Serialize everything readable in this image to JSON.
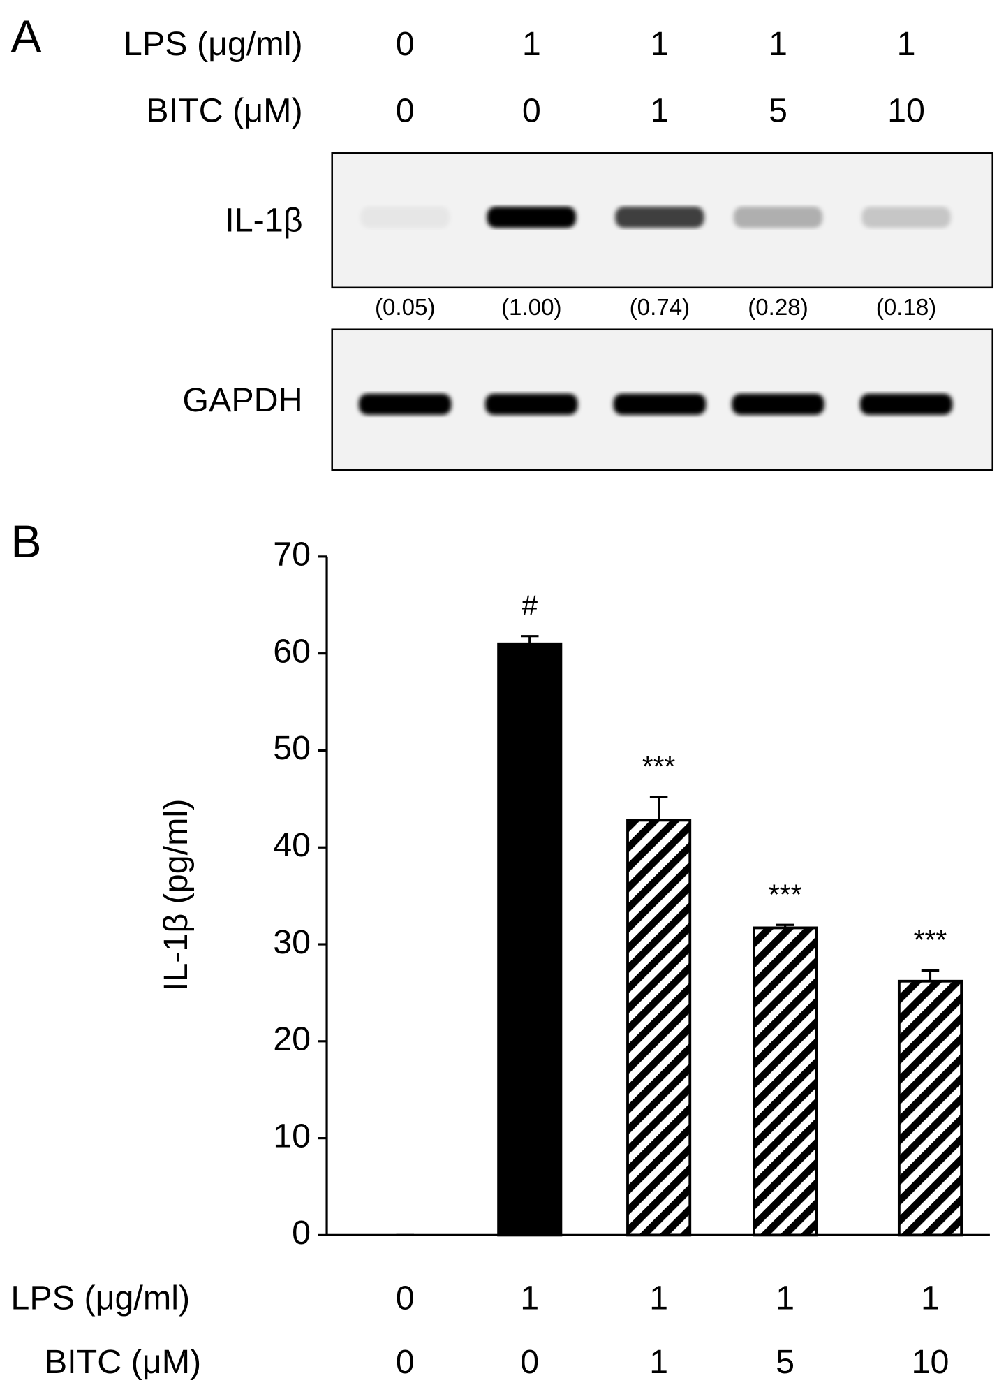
{
  "panel_a": {
    "label": "A",
    "condition_rows": [
      {
        "name": "LPS (μg/ml)",
        "labels": [
          "0",
          "1",
          "1",
          "1",
          "1"
        ]
      },
      {
        "name": "BITC (μM)",
        "labels": [
          "0",
          "0",
          "1",
          "5",
          "10"
        ]
      }
    ],
    "blots": [
      {
        "name": "IL-1β"
      },
      {
        "name": "GAPDH"
      }
    ],
    "ratios": [
      0.05,
      1.0,
      0.74,
      0.28,
      0.18
    ],
    "ratio_labels": [
      "(0.05)",
      "(1.00)",
      "(0.74)",
      "(0.28)",
      "(0.18)"
    ]
  },
  "chart_data": {
    "type": "bar",
    "panel_label": "B",
    "y_label": "IL-1β (pg/ml)",
    "category_rows": [
      {
        "name": "LPS (μg/ml)",
        "labels": [
          "0",
          "1",
          "1",
          "1",
          "1"
        ]
      },
      {
        "name": "BITC (μM)",
        "labels": [
          "0",
          "0",
          "1",
          "5",
          "10"
        ]
      }
    ],
    "values": [
      0,
      61,
      42.8,
      31.7,
      26.2
    ],
    "errors": [
      0,
      0.8,
      2.4,
      0.3,
      1.1
    ],
    "annotations": [
      null,
      "#",
      "***",
      "***",
      "***"
    ],
    "bar_styles": [
      "solid",
      "solid",
      "hatched",
      "hatched",
      "hatched"
    ],
    "color": "#000000",
    "ylim": [
      0,
      70
    ],
    "yticks": [
      0,
      10,
      20,
      30,
      40,
      50,
      60,
      70
    ]
  }
}
